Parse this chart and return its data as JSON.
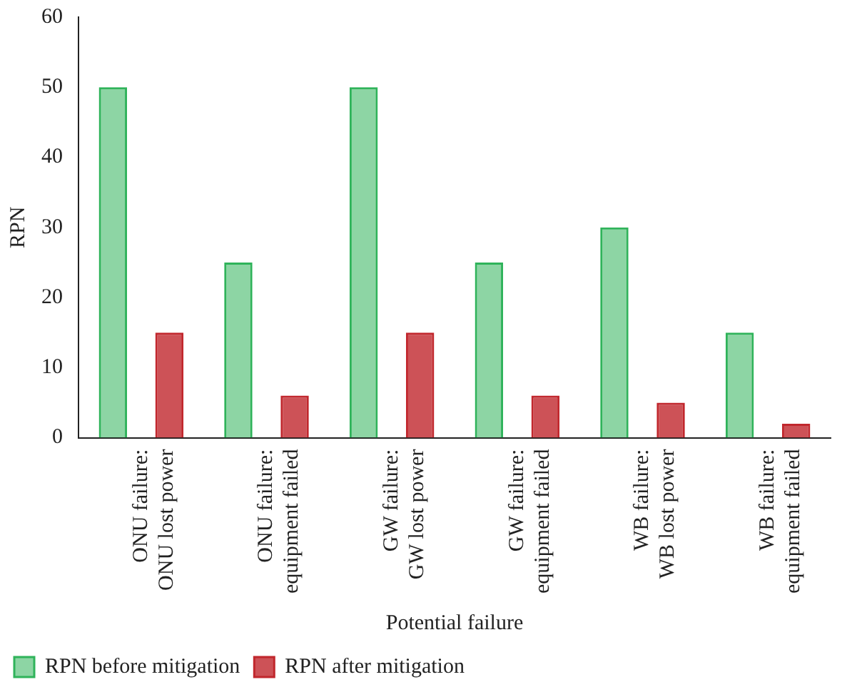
{
  "chart_data": {
    "type": "bar",
    "xlabel": "Potential failure",
    "ylabel": "RPN",
    "categories": [
      "ONU failure:\nONU lost power",
      "ONU failure:\nequipment failed",
      "GW failure:\nGW lost power",
      "GW failure:\nequipment failed",
      "WB failure:\nWB lost power",
      "WB failure:\nequipment failed"
    ],
    "series": [
      {
        "name": "RPN before mitigation",
        "color": "#2fb35a",
        "values": [
          50,
          25,
          50,
          25,
          30,
          15
        ]
      },
      {
        "name": "RPN after mitigation",
        "color": "#c1272d",
        "values": [
          15,
          6,
          15,
          6,
          5,
          2
        ]
      }
    ],
    "ylim": [
      0,
      60
    ],
    "yticks": [
      0,
      10,
      20,
      30,
      40,
      50,
      60
    ],
    "grid": false,
    "legend": "bottom left"
  }
}
